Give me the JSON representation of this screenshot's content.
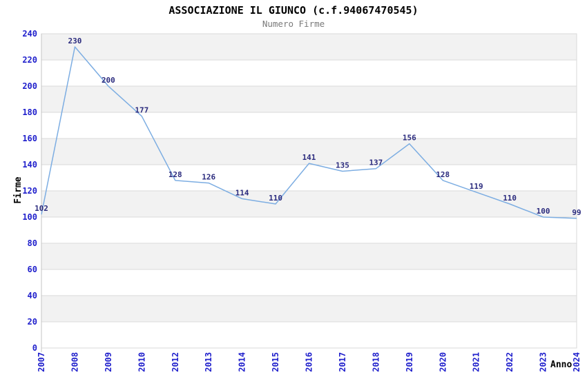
{
  "chart_data": {
    "type": "line",
    "title": "ASSOCIAZIONE IL GIUNCO (c.f.94067470545)",
    "subtitle": "Numero Firme",
    "categories": [
      "2007",
      "2008",
      "2009",
      "2010",
      "2012",
      "2013",
      "2014",
      "2015",
      "2016",
      "2017",
      "2018",
      "2019",
      "2020",
      "2021",
      "2022",
      "2023",
      "2024"
    ],
    "values": [
      102,
      230,
      200,
      177,
      128,
      126,
      114,
      110,
      141,
      135,
      137,
      156,
      128,
      119,
      110,
      100,
      99
    ],
    "xlabel": "Anno",
    "ylabel": "Firme",
    "ylim": [
      0,
      240
    ],
    "ytick_step": 20,
    "yticks": [
      0,
      20,
      40,
      60,
      80,
      100,
      120,
      140,
      160,
      180,
      200,
      220,
      240
    ],
    "grid": true,
    "legend_position": "none",
    "alternating_bands": true,
    "colors": {
      "line": "#7cade2",
      "point_label": "#2b2b7e",
      "tick_label": "#2020cc",
      "band_gray": "#f2f2f2",
      "band_white": "#ffffff",
      "grid_line": "#d9d9d9",
      "axis_line": "#c4c4c4",
      "title": "#000000",
      "subtitle": "#7a7a7a"
    }
  }
}
